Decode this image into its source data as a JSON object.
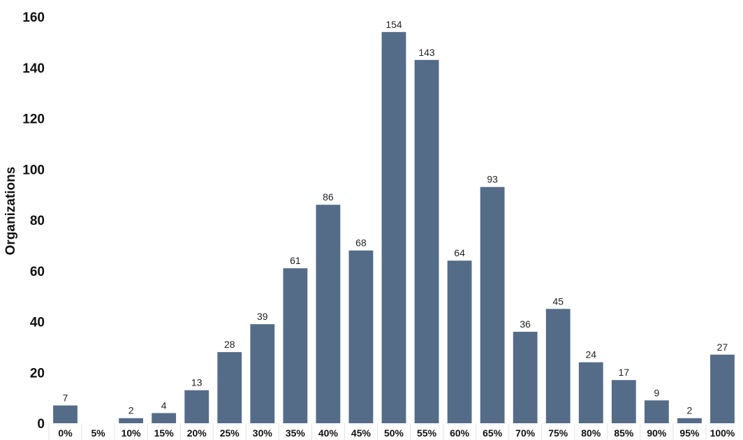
{
  "chart_data": {
    "type": "bar",
    "ylabel": "Organizations",
    "xlabel": "",
    "ylim": [
      0,
      160
    ],
    "yticks": [
      0,
      20,
      40,
      60,
      80,
      100,
      120,
      140,
      160
    ],
    "categories": [
      "0%",
      "5%",
      "10%",
      "15%",
      "20%",
      "25%",
      "30%",
      "35%",
      "40%",
      "45%",
      "50%",
      "55%",
      "60%",
      "65%",
      "70%",
      "75%",
      "80%",
      "85%",
      "90%",
      "95%",
      "100%"
    ],
    "values": [
      7,
      0,
      2,
      4,
      13,
      28,
      39,
      61,
      86,
      68,
      154,
      143,
      64,
      93,
      36,
      45,
      24,
      17,
      9,
      2,
      27
    ],
    "data_labels": [
      "7",
      "",
      "2",
      "4",
      "13",
      "28",
      "39",
      "61",
      "86",
      "68",
      "154",
      "143",
      "64",
      "93",
      "36",
      "45",
      "24",
      "17",
      "9",
      "2",
      "27"
    ],
    "grid": false,
    "bar_color": "#546c88"
  }
}
